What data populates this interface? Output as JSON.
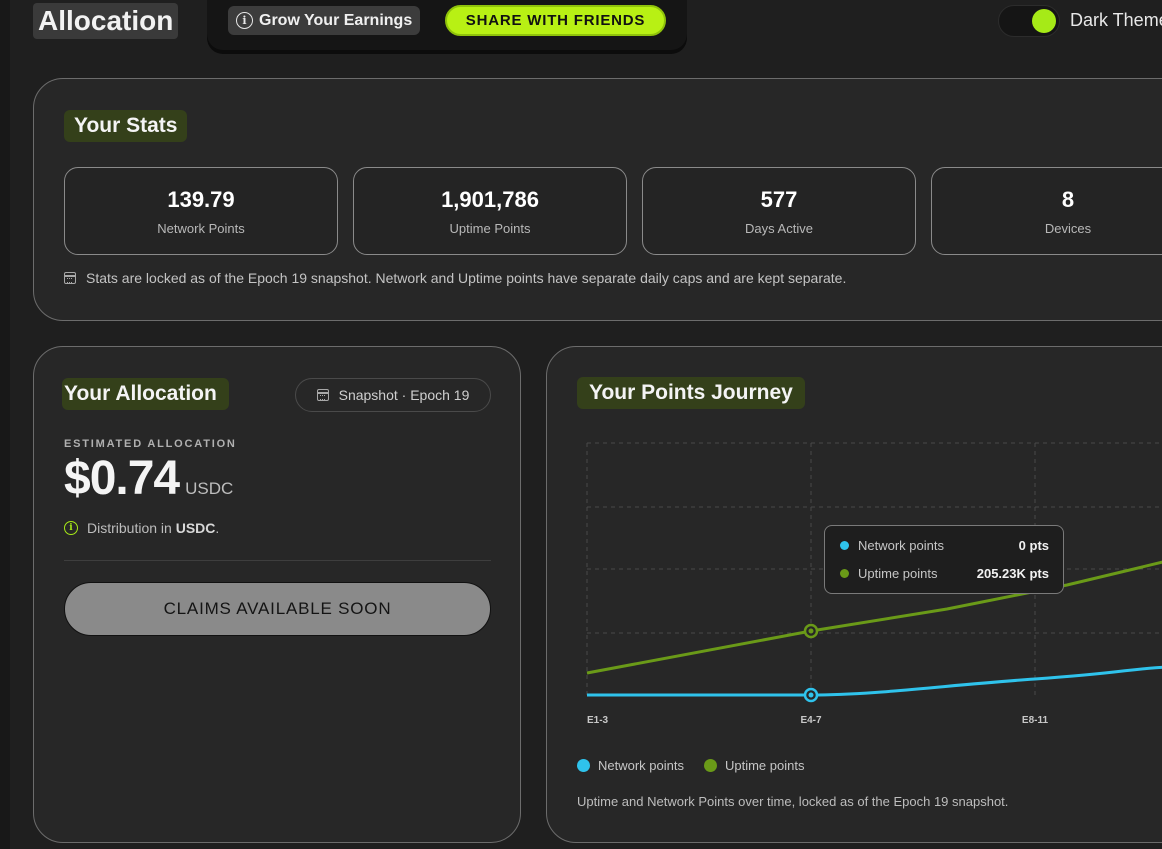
{
  "header": {
    "title": "Allocation",
    "grow_label": "Grow Your Earnings",
    "share_label": "SHARE WITH FRIENDS",
    "theme_label": "Dark Theme",
    "theme_on": true
  },
  "stats": {
    "title": "Your Stats",
    "items": [
      {
        "value": "139.79",
        "label": "Network Points"
      },
      {
        "value": "1,901,786",
        "label": "Uptime Points"
      },
      {
        "value": "577",
        "label": "Days Active"
      },
      {
        "value": "8",
        "label": "Devices"
      }
    ],
    "note": "Stats are locked as of the Epoch 19 snapshot. Network and Uptime points have separate daily caps and are kept separate."
  },
  "allocation": {
    "title": "Your Allocation",
    "snapshot_label": "Snapshot · Epoch 19",
    "estimated_label": "ESTIMATED ALLOCATION",
    "amount": "$0.74",
    "unit": "USDC",
    "distribution_prefix": "Distribution in",
    "distribution_currency": "USDC",
    "distribution_suffix": ".",
    "claims_label": "CLAIMS AVAILABLE SOON"
  },
  "journey": {
    "title": "Your Points Journey",
    "tooltip": {
      "network_label": "Network points",
      "network_value": "0 pts",
      "uptime_label": "Uptime points",
      "uptime_value": "205.23K pts"
    },
    "legend": [
      "Network points",
      "Uptime points"
    ],
    "caption": "Uptime and Network Points over time, locked as of the Epoch 19 snapshot."
  },
  "colors": {
    "accent": "#b8f014",
    "network": "#2fc3ec",
    "uptime": "#6a9a18"
  },
  "chart_data": {
    "type": "line",
    "categories": [
      "E1-3",
      "E4-7",
      "E8-11"
    ],
    "series": [
      {
        "name": "Network points",
        "values": [
          0,
          0,
          0
        ]
      },
      {
        "name": "Uptime points",
        "values": [
          null,
          205230,
          null
        ]
      }
    ],
    "highlighted_category": "E4-7",
    "grid": true,
    "legend_position": "bottom-left"
  }
}
